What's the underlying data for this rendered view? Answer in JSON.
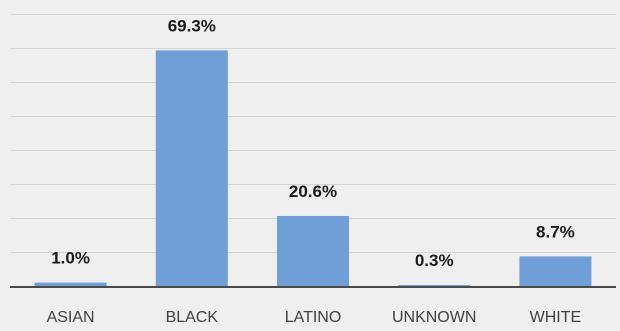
{
  "chart_data": {
    "type": "bar",
    "categories": [
      "ASIAN",
      "BLACK",
      "LATINO",
      "UNKNOWN",
      "WHITE"
    ],
    "values": [
      1.0,
      69.3,
      20.6,
      0.3,
      8.7
    ],
    "value_labels": [
      "1.0%",
      "69.3%",
      "20.6%",
      "0.3%",
      "8.7%"
    ],
    "ylim": [
      0,
      80
    ],
    "grid": true,
    "legend": "none",
    "colors": {
      "bar": "#6f9fd6",
      "background": "#efefef",
      "grid": "#d3d3d3",
      "axis": "#4a4a4a"
    }
  }
}
